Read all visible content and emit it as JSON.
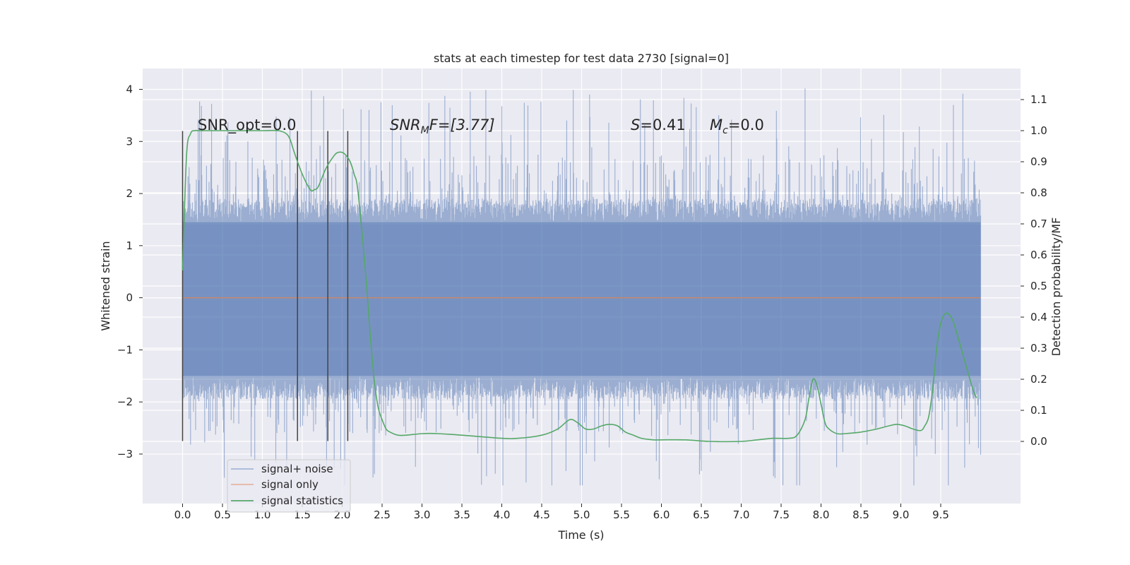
{
  "chart_data": {
    "type": "line",
    "title": "stats at each timestep for test data 2730 [signal=0]",
    "xlabel": "Time (s)",
    "ylabel": "Whitened strain",
    "y2label": "Detection probability/MF",
    "xlim": [
      -0.5,
      10.5
    ],
    "ylim": [
      -3.95,
      4.4
    ],
    "y2lim": [
      -0.2,
      1.2
    ],
    "x_ticks": [
      "0.0",
      "0.5",
      "1.0",
      "1.5",
      "2.0",
      "2.5",
      "3.0",
      "3.5",
      "4.0",
      "4.5",
      "5.0",
      "5.5",
      "6.0",
      "6.5",
      "7.0",
      "7.5",
      "8.0",
      "8.5",
      "9.0",
      "9.5"
    ],
    "y_ticks": [
      "4",
      "3",
      "2",
      "1",
      "0",
      "−1",
      "−2",
      "−3"
    ],
    "y2_ticks": [
      "1.1",
      "1.0",
      "0.9",
      "0.8",
      "0.7",
      "0.6",
      "0.5",
      "0.4",
      "0.3",
      "0.2",
      "0.1",
      "0.0"
    ],
    "grid": true,
    "annotations": {
      "snr_opt": "SNR_opt=0.0",
      "snr_mf_base": "SNR",
      "snr_mf_sub": "M",
      "snr_mf_rest": "F=[3.77]",
      "s_var": "S",
      "s_rest": "=0.41",
      "mc_var": "M",
      "mc_sub": "c",
      "mc_rest": "=0.0"
    },
    "markers_x": [
      0.0,
      1.44,
      1.82,
      2.07
    ],
    "markers_yrange": [
      -2.75,
      3.2
    ],
    "colors": {
      "noise": "#4c72b0",
      "signal": "#dd8452",
      "stats": "#55a868",
      "marker": "#444444",
      "plot_bg": "#eaeaf2",
      "grid": "#ffffff"
    },
    "series": [
      {
        "name": "signal+ noise",
        "axis": "left",
        "description_band": {
          "x_start": 0.0,
          "x_end": 10.0,
          "dense_range": [
            -1.5,
            1.45
          ],
          "spike_max": 4.05,
          "spike_min": -3.6
        }
      },
      {
        "name": "signal only",
        "axis": "left",
        "x": [
          0.0,
          10.0
        ],
        "values": [
          0.0,
          0.0
        ]
      },
      {
        "name": "signal statistics",
        "axis": "right",
        "x": [
          0.0,
          0.05,
          0.1,
          0.15,
          0.2,
          0.3,
          0.5,
          0.7,
          1.0,
          1.2,
          1.3,
          1.35,
          1.4,
          1.5,
          1.6,
          1.65,
          1.7,
          1.8,
          1.9,
          1.95,
          2.0,
          2.05,
          2.1,
          2.15,
          2.2,
          2.3,
          2.35,
          2.4,
          2.45,
          2.5,
          2.55,
          2.6,
          2.7,
          2.8,
          3.0,
          3.2,
          3.5,
          4.0,
          4.2,
          4.5,
          4.7,
          4.85,
          4.95,
          5.05,
          5.15,
          5.25,
          5.35,
          5.45,
          5.55,
          5.65,
          5.75,
          5.9,
          6.0,
          6.3,
          6.6,
          7.0,
          7.2,
          7.4,
          7.6,
          7.7,
          7.8,
          7.85,
          7.9,
          7.95,
          8.0,
          8.05,
          8.1,
          8.2,
          8.3,
          8.5,
          8.7,
          8.85,
          8.95,
          9.05,
          9.15,
          9.25,
          9.3,
          9.35,
          9.4,
          9.45,
          9.5,
          9.55,
          9.6,
          9.65,
          9.7,
          9.8,
          9.9,
          9.95
        ],
        "values": [
          0.55,
          0.92,
          0.99,
          1.0,
          1.0,
          1.0,
          1.0,
          1.0,
          1.0,
          1.0,
          0.99,
          0.97,
          0.93,
          0.86,
          0.81,
          0.81,
          0.82,
          0.88,
          0.92,
          0.93,
          0.93,
          0.92,
          0.9,
          0.86,
          0.8,
          0.52,
          0.35,
          0.2,
          0.11,
          0.07,
          0.04,
          0.03,
          0.02,
          0.02,
          0.025,
          0.025,
          0.02,
          0.01,
          0.01,
          0.02,
          0.04,
          0.07,
          0.06,
          0.04,
          0.04,
          0.05,
          0.055,
          0.05,
          0.03,
          0.02,
          0.01,
          0.005,
          0.005,
          0.005,
          0.0,
          0.0,
          0.005,
          0.01,
          0.01,
          0.02,
          0.07,
          0.14,
          0.2,
          0.18,
          0.12,
          0.06,
          0.04,
          0.025,
          0.025,
          0.03,
          0.04,
          0.05,
          0.055,
          0.05,
          0.04,
          0.035,
          0.05,
          0.08,
          0.17,
          0.3,
          0.38,
          0.41,
          0.41,
          0.39,
          0.35,
          0.26,
          0.17,
          0.14
        ]
      }
    ]
  }
}
